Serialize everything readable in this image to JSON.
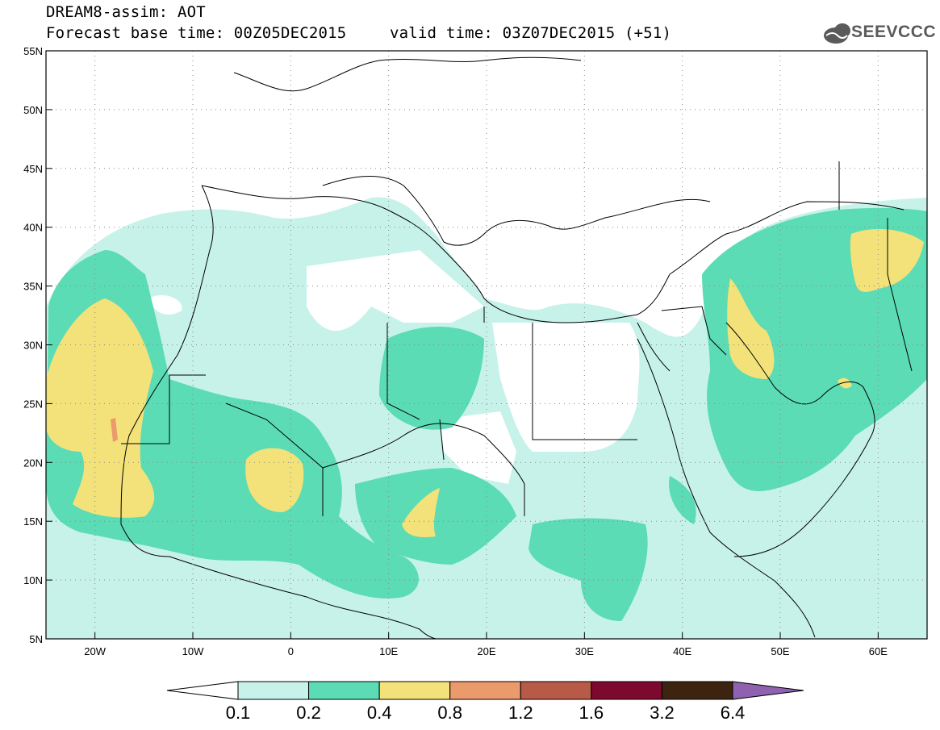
{
  "header": {
    "title": "DREAM8-assim: AOT",
    "base_time": "Forecast base time: 00Z05DEC2015",
    "valid_time": "valid time: 03Z07DEC2015 (+51)",
    "logo_text": "SEEVCCC"
  },
  "map": {
    "lat_labels": [
      "55N",
      "50N",
      "45N",
      "40N",
      "35N",
      "30N",
      "25N",
      "20N",
      "15N",
      "10N",
      "5N"
    ],
    "lon_labels": [
      "20W",
      "10W",
      "0",
      "10E",
      "20E",
      "30E",
      "40E",
      "50E",
      "60E"
    ],
    "lon_range": [
      -25,
      65
    ],
    "lat_range": [
      5,
      55
    ]
  },
  "legend": {
    "labels": [
      "0.1",
      "0.2",
      "0.4",
      "0.8",
      "1.2",
      "1.6",
      "3.2",
      "6.4"
    ],
    "colors": [
      "#ffffff",
      "#c7f2ea",
      "#5bdcb5",
      "#f3e279",
      "#eb9a6c",
      "#b85a48",
      "#7d0a2e",
      "#3d2410",
      "#8f62b0"
    ]
  }
}
